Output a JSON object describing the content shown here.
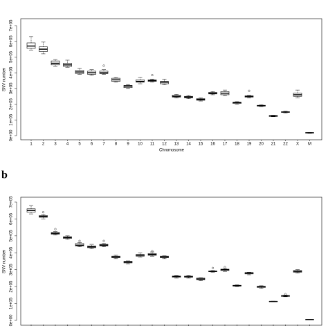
{
  "chart_data": [
    {
      "type": "box",
      "ylabel": "SNV number",
      "xlabel": "Chromosome",
      "categories": [
        "1",
        "2",
        "3",
        "4",
        "5",
        "6",
        "7",
        "8",
        "9",
        "10",
        "11",
        "12",
        "13",
        "14",
        "15",
        "16",
        "17",
        "18",
        "19",
        "20",
        "21",
        "22",
        "X",
        "M"
      ],
      "ylim": [
        0,
        700000
      ],
      "yticks": [
        {
          "value": 0,
          "label": "0e+00"
        },
        {
          "value": 100000,
          "label": "1e+05"
        },
        {
          "value": 200000,
          "label": "2e+05"
        },
        {
          "value": 300000,
          "label": "3e+05"
        },
        {
          "value": 400000,
          "label": "4e+05"
        },
        {
          "value": 500000,
          "label": "5e+05"
        },
        {
          "value": 600000,
          "label": "6e+05"
        },
        {
          "value": 700000,
          "label": "7e+05"
        }
      ],
      "color": "#000000",
      "boxes": [
        {
          "min": 545000,
          "q1": 555000,
          "median": 570000,
          "q3": 590000,
          "max": 630000,
          "outliers": []
        },
        {
          "min": 520000,
          "q1": 535000,
          "median": 550000,
          "q3": 565000,
          "max": 595000,
          "outliers": []
        },
        {
          "min": 440000,
          "q1": 450000,
          "median": 460000,
          "q3": 475000,
          "max": 485000,
          "outliers": []
        },
        {
          "min": 435000,
          "q1": 440000,
          "median": 450000,
          "q3": 460000,
          "max": 480000,
          "outliers": []
        },
        {
          "min": 390000,
          "q1": 395000,
          "median": 405000,
          "q3": 415000,
          "max": 430000,
          "outliers": []
        },
        {
          "min": 385000,
          "q1": 390000,
          "median": 400000,
          "q3": 410000,
          "max": 420000,
          "outliers": []
        },
        {
          "min": 390000,
          "q1": 395000,
          "median": 400000,
          "q3": 410000,
          "max": 420000,
          "outliers": [
            445000
          ]
        },
        {
          "min": 340000,
          "q1": 345000,
          "median": 355000,
          "q3": 365000,
          "max": 370000,
          "outliers": []
        },
        {
          "min": 300000,
          "q1": 305000,
          "median": 315000,
          "q3": 320000,
          "max": 325000,
          "outliers": []
        },
        {
          "min": 330000,
          "q1": 340000,
          "median": 345000,
          "q3": 355000,
          "max": 370000,
          "outliers": []
        },
        {
          "min": 340000,
          "q1": 345000,
          "median": 350000,
          "q3": 355000,
          "max": 360000,
          "outliers": [
            385000
          ]
        },
        {
          "min": 325000,
          "q1": 330000,
          "median": 340000,
          "q3": 345000,
          "max": 360000,
          "outliers": []
        },
        {
          "min": 240000,
          "q1": 245000,
          "median": 250000,
          "q3": 258000,
          "max": 262000,
          "outliers": []
        },
        {
          "min": 235000,
          "q1": 240000,
          "median": 245000,
          "q3": 250000,
          "max": 255000,
          "outliers": []
        },
        {
          "min": 220000,
          "q1": 225000,
          "median": 230000,
          "q3": 235000,
          "max": 240000,
          "outliers": []
        },
        {
          "min": 260000,
          "q1": 265000,
          "median": 270000,
          "q3": 275000,
          "max": 280000,
          "outliers": []
        },
        {
          "min": 255000,
          "q1": 260000,
          "median": 270000,
          "q3": 280000,
          "max": 290000,
          "outliers": []
        },
        {
          "min": 200000,
          "q1": 205000,
          "median": 210000,
          "q3": 213000,
          "max": 216000,
          "outliers": []
        },
        {
          "min": 240000,
          "q1": 245000,
          "median": 250000,
          "q3": 253000,
          "max": 256000,
          "outliers": [
            285000
          ]
        },
        {
          "min": 185000,
          "q1": 188000,
          "median": 190000,
          "q3": 193000,
          "max": 196000,
          "outliers": []
        },
        {
          "min": 120000,
          "q1": 122000,
          "median": 125000,
          "q3": 128000,
          "max": 130000,
          "outliers": []
        },
        {
          "min": 145000,
          "q1": 148000,
          "median": 150000,
          "q3": 152000,
          "max": 155000,
          "outliers": []
        },
        {
          "min": 240000,
          "q1": 250000,
          "median": 260000,
          "q3": 270000,
          "max": 290000,
          "outliers": []
        },
        {
          "min": 15000,
          "q1": 17000,
          "median": 18000,
          "q3": 19000,
          "max": 20000,
          "outliers": []
        }
      ]
    },
    {
      "type": "box",
      "panel_label": "b",
      "ylabel": "SNV number",
      "categories": [
        null,
        null,
        null,
        null,
        null,
        null,
        null,
        null,
        null,
        null,
        null,
        null,
        null,
        null,
        null,
        null,
        null,
        null,
        null,
        null,
        null,
        null,
        null,
        null
      ],
      "ylim": [
        0,
        700000
      ],
      "yticks": [
        {
          "value": 0,
          "label": "0e+00"
        },
        {
          "value": 100000,
          "label": "1e+05"
        },
        {
          "value": 200000,
          "label": "2e+05"
        },
        {
          "value": 300000,
          "label": "3e+05"
        },
        {
          "value": 400000,
          "label": "4e+05"
        },
        {
          "value": 500000,
          "label": "5e+05"
        },
        {
          "value": 600000,
          "label": "6e+05"
        },
        {
          "value": 700000,
          "label": "7e+05"
        }
      ],
      "color": "#000000",
      "boxes": [
        {
          "min": 630000,
          "q1": 640000,
          "median": 650000,
          "q3": 660000,
          "max": 680000,
          "outliers": []
        },
        {
          "min": 600000,
          "q1": 610000,
          "median": 615000,
          "q3": 620000,
          "max": 625000,
          "outliers": [
            640000
          ]
        },
        {
          "min": 505000,
          "q1": 510000,
          "median": 515000,
          "q3": 520000,
          "max": 525000,
          "outliers": [
            540000
          ]
        },
        {
          "min": 480000,
          "q1": 485000,
          "median": 490000,
          "q3": 495000,
          "max": 500000,
          "outliers": []
        },
        {
          "min": 435000,
          "q1": 440000,
          "median": 445000,
          "q3": 455000,
          "max": 460000,
          "outliers": [
            470000
          ]
        },
        {
          "min": 425000,
          "q1": 430000,
          "median": 435000,
          "q3": 440000,
          "max": 450000,
          "outliers": []
        },
        {
          "min": 435000,
          "q1": 440000,
          "median": 445000,
          "q3": 450000,
          "max": 455000,
          "outliers": [
            470000
          ]
        },
        {
          "min": 365000,
          "q1": 370000,
          "median": 375000,
          "q3": 380000,
          "max": 385000,
          "outliers": []
        },
        {
          "min": 335000,
          "q1": 340000,
          "median": 345000,
          "q3": 350000,
          "max": 352000,
          "outliers": []
        },
        {
          "min": 375000,
          "q1": 380000,
          "median": 385000,
          "q3": 390000,
          "max": 400000,
          "outliers": []
        },
        {
          "min": 380000,
          "q1": 385000,
          "median": 390000,
          "q3": 395000,
          "max": 405000,
          "outliers": [
            410000
          ]
        },
        {
          "min": 365000,
          "q1": 370000,
          "median": 375000,
          "q3": 380000,
          "max": 382000,
          "outliers": []
        },
        {
          "min": 250000,
          "q1": 255000,
          "median": 260000,
          "q3": 262000,
          "max": 265000,
          "outliers": []
        },
        {
          "min": 250000,
          "q1": 255000,
          "median": 258000,
          "q3": 262000,
          "max": 265000,
          "outliers": []
        },
        {
          "min": 235000,
          "q1": 240000,
          "median": 245000,
          "q3": 250000,
          "max": 252000,
          "outliers": []
        },
        {
          "min": 285000,
          "q1": 288000,
          "median": 290000,
          "q3": 292000,
          "max": 295000,
          "outliers": [
            310000
          ]
        },
        {
          "min": 290000,
          "q1": 295000,
          "median": 300000,
          "q3": 303000,
          "max": 305000,
          "outliers": [
            315000
          ]
        },
        {
          "min": 200000,
          "q1": 203000,
          "median": 205000,
          "q3": 208000,
          "max": 210000,
          "outliers": []
        },
        {
          "min": 270000,
          "q1": 275000,
          "median": 280000,
          "q3": 283000,
          "max": 285000,
          "outliers": []
        },
        {
          "min": 190000,
          "q1": 195000,
          "median": 200000,
          "q3": 202000,
          "max": 205000,
          "outliers": []
        },
        {
          "min": 110000,
          "q1": 111000,
          "median": 112000,
          "q3": 113000,
          "max": 114000,
          "outliers": []
        },
        {
          "min": 140000,
          "q1": 142000,
          "median": 145000,
          "q3": 147000,
          "max": 150000,
          "outliers": [
            155000
          ]
        },
        {
          "min": 280000,
          "q1": 285000,
          "median": 290000,
          "q3": 295000,
          "max": 300000,
          "outliers": []
        },
        {
          "min": 4000,
          "q1": 4500,
          "median": 5000,
          "q3": 5500,
          "max": 6000,
          "outliers": []
        }
      ]
    }
  ]
}
